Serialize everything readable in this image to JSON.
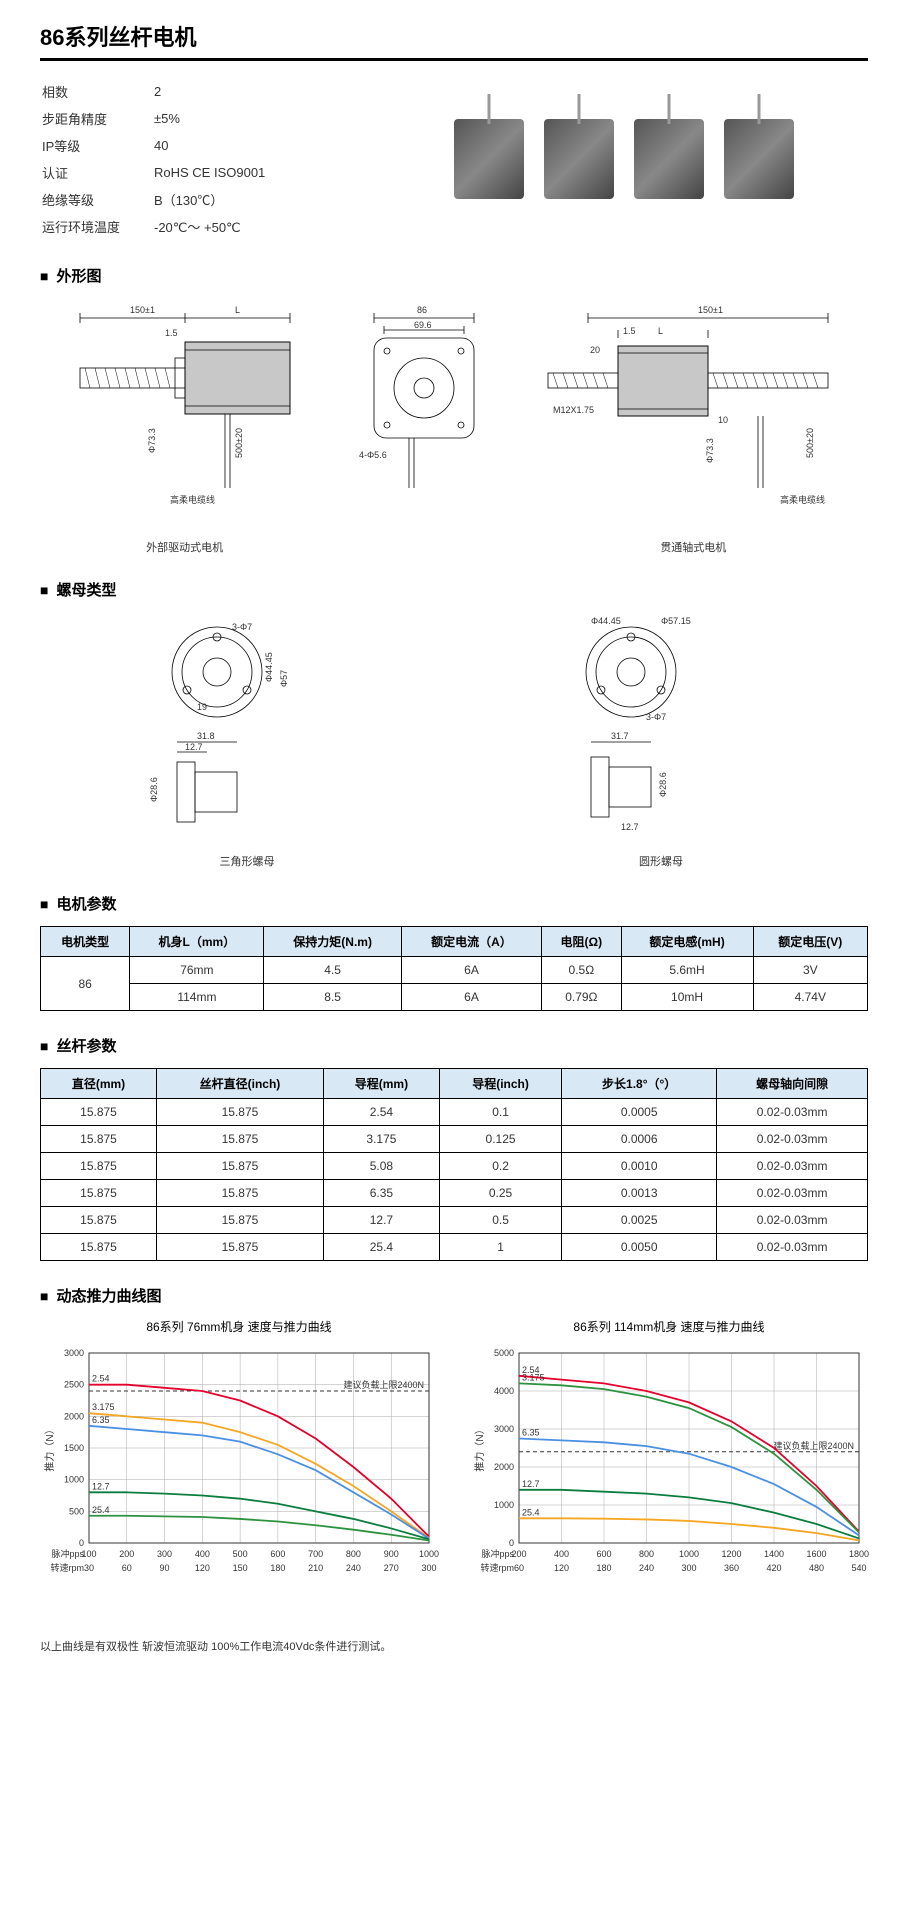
{
  "page_title": "86系列丝杆电机",
  "specs": [
    {
      "label": "相数",
      "value": "2"
    },
    {
      "label": "步距角精度",
      "value": "±5%"
    },
    {
      "label": "IP等级",
      "value": "40"
    },
    {
      "label": "认证",
      "value": "RoHS CE ISO9001"
    },
    {
      "label": "绝缘等级",
      "value": "B（130℃）"
    },
    {
      "label": "运行环境温度",
      "value": "-20℃～ +50℃"
    }
  ],
  "sections": {
    "outline": "外形图",
    "nut": "螺母类型",
    "motor_params": "电机参数",
    "screw_params": "丝杆参数",
    "curves": "动态推力曲线图"
  },
  "drawing_labels": {
    "external": "外部驱动式电机",
    "through": "贯通轴式电机",
    "tri_nut": "三角形螺母",
    "round_nut": "圆形螺母"
  },
  "drawing_dims": {
    "d_150": "150±1",
    "d_L": "L",
    "d_1_5": "1.5",
    "d_500": "500±20",
    "d_86": "86",
    "d_69_6": "69.6",
    "d_4phi5_6": "4-Φ5.6",
    "d_20": "20",
    "d_10": "10",
    "d_M12": "M12X1.75",
    "d_phi44_45": "Φ44.45",
    "d_phi57": "Φ57",
    "d_phi57_15": "Φ57.15",
    "d_3phi7": "3-Φ7",
    "d_19": "19",
    "d_31_8": "31.8",
    "d_31_7": "31.7",
    "d_12_7": "12.7",
    "d_phi28_6": "Φ28.6",
    "d_cable1": "高柔电缆线",
    "d_cable2": "高柔电缆线",
    "d_phi73": "Φ73.3"
  },
  "motor_params": {
    "headers": [
      "电机类型",
      "机身L（mm）",
      "保持力矩(N.m)",
      "额定电流（A）",
      "电阻(Ω)",
      "额定电感(mH)",
      "额定电压(V)"
    ],
    "type": "86",
    "rows": [
      [
        "76mm",
        "4.5",
        "6A",
        "0.5Ω",
        "5.6mH",
        "3V"
      ],
      [
        "114mm",
        "8.5",
        "6A",
        "0.79Ω",
        "10mH",
        "4.74V"
      ]
    ]
  },
  "screw_params": {
    "headers": [
      "直径(mm)",
      "丝杆直径(inch)",
      "导程(mm)",
      "导程(inch)",
      "步长1.8°（°）",
      "螺母轴向间隙"
    ],
    "rows": [
      [
        "15.875",
        "15.875",
        "2.54",
        "0.1",
        "0.0005",
        "0.02-0.03mm"
      ],
      [
        "15.875",
        "15.875",
        "3.175",
        "0.125",
        "0.0006",
        "0.02-0.03mm"
      ],
      [
        "15.875",
        "15.875",
        "5.08",
        "0.2",
        "0.0010",
        "0.02-0.03mm"
      ],
      [
        "15.875",
        "15.875",
        "6.35",
        "0.25",
        "0.0013",
        "0.02-0.03mm"
      ],
      [
        "15.875",
        "15.875",
        "12.7",
        "0.5",
        "0.0025",
        "0.02-0.03mm"
      ],
      [
        "15.875",
        "15.875",
        "25.4",
        "1",
        "0.0050",
        "0.02-0.03mm"
      ]
    ]
  },
  "chart1": {
    "title": "86系列 76mm机身 速度与推力曲线",
    "ylabel": "推力（N）",
    "ymax": 3000,
    "ytick": 500,
    "xlabels": {
      "pulse": "脉冲pps",
      "rpm": "转速rpm"
    },
    "pulse_ticks": [
      100,
      200,
      300,
      400,
      500,
      600,
      700,
      800,
      900,
      1000
    ],
    "rpm_ticks": [
      30,
      60,
      90,
      120,
      150,
      180,
      210,
      240,
      270,
      300
    ],
    "limit_label": "建议负载上限2400N",
    "limit_y": 2400,
    "colors": {
      "2.54": "#e4002b",
      "3.175": "#f5a623",
      "6.35": "#4a90e2",
      "12.7": "#0a7d3e",
      "25.4": "#2d923f"
    },
    "series": [
      {
        "name": "2.54",
        "pts": [
          [
            100,
            2500
          ],
          [
            200,
            2500
          ],
          [
            300,
            2450
          ],
          [
            400,
            2400
          ],
          [
            500,
            2250
          ],
          [
            600,
            2000
          ],
          [
            700,
            1650
          ],
          [
            800,
            1200
          ],
          [
            900,
            700
          ],
          [
            1000,
            100
          ]
        ]
      },
      {
        "name": "3.175",
        "pts": [
          [
            100,
            2050
          ],
          [
            200,
            2000
          ],
          [
            300,
            1950
          ],
          [
            400,
            1900
          ],
          [
            500,
            1750
          ],
          [
            600,
            1550
          ],
          [
            700,
            1250
          ],
          [
            800,
            900
          ],
          [
            900,
            500
          ],
          [
            1000,
            80
          ]
        ]
      },
      {
        "name": "6.35",
        "pts": [
          [
            100,
            1850
          ],
          [
            200,
            1800
          ],
          [
            300,
            1750
          ],
          [
            400,
            1700
          ],
          [
            500,
            1600
          ],
          [
            600,
            1400
          ],
          [
            700,
            1150
          ],
          [
            800,
            800
          ],
          [
            900,
            450
          ],
          [
            1000,
            70
          ]
        ]
      },
      {
        "name": "12.7",
        "pts": [
          [
            100,
            800
          ],
          [
            200,
            800
          ],
          [
            300,
            780
          ],
          [
            400,
            750
          ],
          [
            500,
            700
          ],
          [
            600,
            620
          ],
          [
            700,
            500
          ],
          [
            800,
            380
          ],
          [
            900,
            230
          ],
          [
            1000,
            60
          ]
        ]
      },
      {
        "name": "25.4",
        "pts": [
          [
            100,
            430
          ],
          [
            200,
            430
          ],
          [
            300,
            420
          ],
          [
            400,
            410
          ],
          [
            500,
            380
          ],
          [
            600,
            340
          ],
          [
            700,
            280
          ],
          [
            800,
            210
          ],
          [
            900,
            130
          ],
          [
            1000,
            40
          ]
        ]
      }
    ]
  },
  "chart2": {
    "title": "86系列 114mm机身 速度与推力曲线",
    "ylabel": "推力（N）",
    "ymax": 5000,
    "ytick": 1000,
    "xlabels": {
      "pulse": "脉冲pps",
      "rpm": "转速rpm"
    },
    "pulse_ticks": [
      200,
      400,
      600,
      800,
      1000,
      1200,
      1400,
      1600,
      1800
    ],
    "rpm_ticks": [
      60,
      120,
      180,
      240,
      300,
      360,
      420,
      480,
      540
    ],
    "limit_label": "建议负载上限2400N",
    "limit_y": 2400,
    "colors": {
      "2.54": "#e4002b",
      "3.175": "#2d923f",
      "6.35": "#4a90e2",
      "12.7": "#0a7d3e",
      "25.4": "#f5a623"
    },
    "series": [
      {
        "name": "2.54",
        "pts": [
          [
            200,
            4400
          ],
          [
            400,
            4300
          ],
          [
            600,
            4200
          ],
          [
            800,
            4000
          ],
          [
            1000,
            3700
          ],
          [
            1200,
            3200
          ],
          [
            1400,
            2500
          ],
          [
            1600,
            1500
          ],
          [
            1800,
            300
          ]
        ]
      },
      {
        "name": "3.175",
        "pts": [
          [
            200,
            4200
          ],
          [
            400,
            4150
          ],
          [
            600,
            4050
          ],
          [
            800,
            3850
          ],
          [
            1000,
            3550
          ],
          [
            1200,
            3050
          ],
          [
            1400,
            2350
          ],
          [
            1600,
            1400
          ],
          [
            1800,
            280
          ]
        ]
      },
      {
        "name": "6.35",
        "pts": [
          [
            200,
            2750
          ],
          [
            400,
            2700
          ],
          [
            600,
            2650
          ],
          [
            800,
            2550
          ],
          [
            1000,
            2350
          ],
          [
            1200,
            2000
          ],
          [
            1400,
            1550
          ],
          [
            1600,
            950
          ],
          [
            1800,
            200
          ]
        ]
      },
      {
        "name": "12.7",
        "pts": [
          [
            200,
            1400
          ],
          [
            400,
            1400
          ],
          [
            600,
            1350
          ],
          [
            800,
            1300
          ],
          [
            1000,
            1200
          ],
          [
            1200,
            1050
          ],
          [
            1400,
            800
          ],
          [
            1600,
            500
          ],
          [
            1800,
            120
          ]
        ]
      },
      {
        "name": "25.4",
        "pts": [
          [
            200,
            650
          ],
          [
            400,
            650
          ],
          [
            600,
            640
          ],
          [
            800,
            620
          ],
          [
            1000,
            580
          ],
          [
            1200,
            500
          ],
          [
            1400,
            400
          ],
          [
            1600,
            260
          ],
          [
            1800,
            70
          ]
        ]
      }
    ]
  },
  "chart_note": "以上曲线是有双极性 斩波恒流驱动 100%工作电流40Vdc条件进行测试。"
}
